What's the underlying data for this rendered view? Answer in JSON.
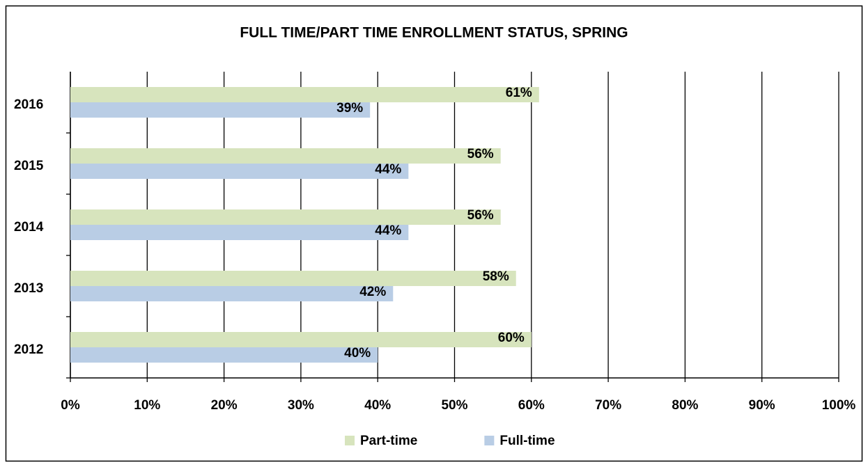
{
  "chart_data": {
    "type": "bar",
    "orientation": "horizontal",
    "title": "FULL TIME/PART TIME ENROLLMENT STATUS, SPRING",
    "categories": [
      "2012",
      "2013",
      "2014",
      "2015",
      "2016"
    ],
    "series": [
      {
        "name": "Part-time",
        "color": "#d7e4bd",
        "values": [
          60,
          58,
          56,
          56,
          61
        ],
        "value_labels": [
          "60%",
          "58%",
          "56%",
          "56%",
          "61%"
        ]
      },
      {
        "name": "Full-time",
        "color": "#b9cde5",
        "values": [
          40,
          42,
          44,
          44,
          39
        ],
        "value_labels": [
          "40%",
          "42%",
          "44%",
          "44%",
          "39%"
        ]
      }
    ],
    "xlim": [
      0,
      100
    ],
    "xticks": [
      {
        "value": 0,
        "label": "0%"
      },
      {
        "value": 10,
        "label": "10%"
      },
      {
        "value": 20,
        "label": "20%"
      },
      {
        "value": 30,
        "label": "30%"
      },
      {
        "value": 40,
        "label": "40%"
      },
      {
        "value": 50,
        "label": "50%"
      },
      {
        "value": 60,
        "label": "60%"
      },
      {
        "value": 70,
        "label": "70%"
      },
      {
        "value": 80,
        "label": "80%"
      },
      {
        "value": 90,
        "label": "90%"
      },
      {
        "value": 100,
        "label": "100%"
      }
    ],
    "grid": true,
    "legend": "bottom"
  }
}
